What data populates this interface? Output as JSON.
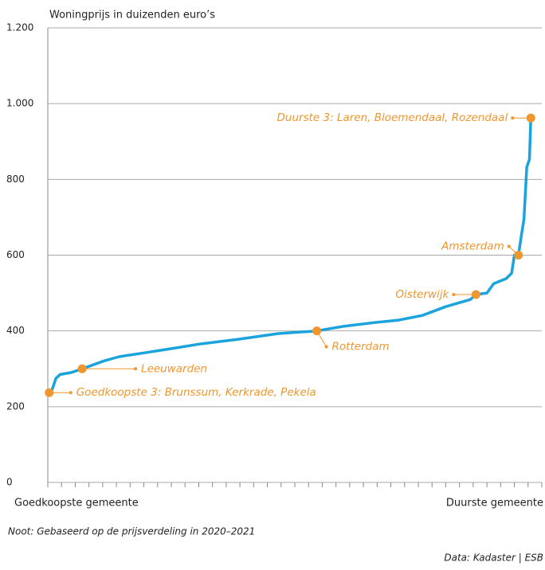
{
  "chart_data": {
    "type": "line",
    "ylabel": "Woningprijs in duizenden euro’s",
    "xlabel_left": "Goedkoopste gemeente",
    "xlabel_right": "Duurste gemeente",
    "note": "Noot: Gebaseerd op de prijsverdeling in 2020–2021",
    "source": "Data: Kadaster | ESB",
    "x": [
      1,
      3,
      6,
      9,
      17,
      25,
      41,
      52,
      70,
      93,
      110,
      139,
      168,
      196,
      215,
      238,
      255,
      273,
      290,
      308,
      312,
      320,
      325,
      334,
      338,
      340,
      343,
      345,
      347,
      349,
      351,
      352
    ],
    "series": [
      {
        "name": "Woningprijs",
        "color": "#1aa3dc",
        "values": [
          237,
          244,
          275,
          285,
          290,
          300,
          321,
          332,
          342,
          355,
          365,
          378,
          393,
          400,
          412,
          422,
          428,
          441,
          464,
          483,
          496,
          500,
          525,
          538,
          552,
          600,
          600,
          650,
          695,
          832,
          853,
          962
        ]
      }
    ],
    "xlim": [
      0,
      360
    ],
    "xticks": [
      0,
      10,
      20,
      30,
      40,
      50,
      60,
      70,
      80,
      90,
      100,
      110,
      120,
      130,
      140,
      150,
      160,
      170,
      180,
      190,
      200,
      210,
      220,
      230,
      240,
      250,
      260,
      270,
      280,
      290,
      300,
      310,
      320,
      330,
      340,
      350,
      360
    ],
    "ylim": [
      0,
      1200
    ],
    "yticks": [
      0,
      200,
      400,
      600,
      800,
      {
        "value": 1000,
        "label": "1.000"
      },
      {
        "value": 1200,
        "label": "1.200"
      }
    ],
    "grid": true,
    "annotation_color": "#f0962e",
    "annotations": [
      {
        "text": "Goedkoopste 3: Brunssum, Kerkrade, Pekela",
        "x": 1,
        "y": 237
      },
      {
        "text": "Leeuwarden",
        "x": 25,
        "y": 300
      },
      {
        "text": "Rotterdam",
        "x": 196,
        "y": 400
      },
      {
        "text": "Oisterwijk",
        "x": 312,
        "y": 496
      },
      {
        "text": "Amsterdam",
        "x": 343,
        "y": 600
      },
      {
        "text": "Duurste 3: Laren, Bloemendaal, Rozendaal",
        "x": 352,
        "y": 962
      }
    ]
  }
}
